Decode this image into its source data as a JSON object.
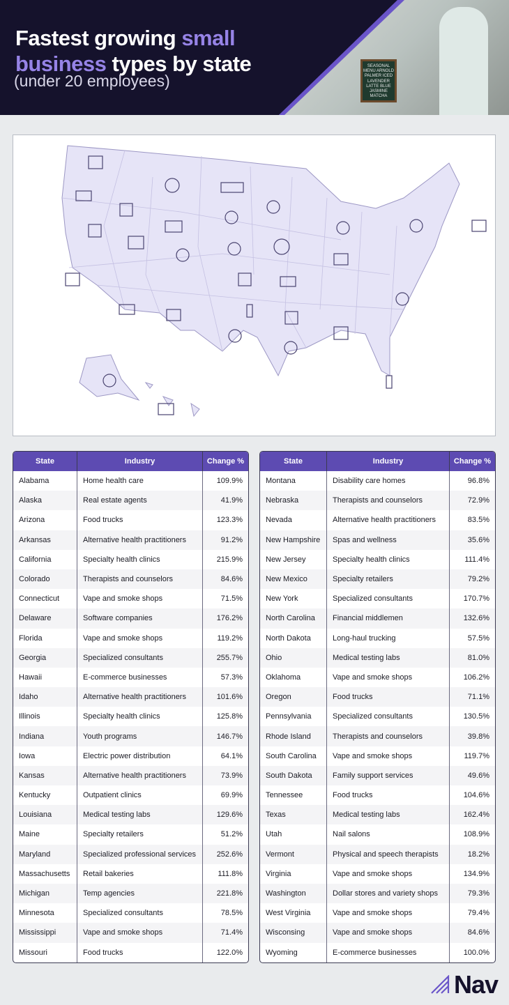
{
  "header": {
    "title_part1": "Fastest growing ",
    "title_highlight1": "small",
    "title_highlight2": "business",
    "title_part2": " types by state",
    "subtitle": "(under 20 employees)",
    "photo_board": "SEASONAL MENU ARNOLD PALMER ICED LAVENDER LATTE BLUE JASMINE MATCHA"
  },
  "colors": {
    "header_bg": "#15122c",
    "accent": "#5d4bb2",
    "highlight": "#9683e6",
    "map_fill": "#e6e4f7"
  },
  "tables": {
    "headers": [
      "State",
      "Industry",
      "Change %"
    ],
    "left": [
      [
        "Alabama",
        "Home health care",
        "109.9%"
      ],
      [
        "Alaska",
        "Real estate agents",
        "41.9%"
      ],
      [
        "Arizona",
        "Food trucks",
        "123.3%"
      ],
      [
        "Arkansas",
        "Alternative health practitioners",
        "91.2%"
      ],
      [
        "California",
        "Specialty health clinics",
        "215.9%"
      ],
      [
        "Colorado",
        "Therapists and counselors",
        "84.6%"
      ],
      [
        "Connecticut",
        "Vape and smoke shops",
        "71.5%"
      ],
      [
        "Delaware",
        "Software companies",
        "176.2%"
      ],
      [
        "Florida",
        "Vape and smoke shops",
        "119.2%"
      ],
      [
        "Georgia",
        "Specialized consultants",
        "255.7%"
      ],
      [
        "Hawaii",
        "E-commerce businesses",
        "57.3%"
      ],
      [
        "Idaho",
        "Alternative health practitioners",
        "101.6%"
      ],
      [
        "Illinois",
        "Specialty health clinics",
        "125.8%"
      ],
      [
        "Indiana",
        "Youth programs",
        "146.7%"
      ],
      [
        "Iowa",
        "Electric power distribution",
        "64.1%"
      ],
      [
        "Kansas",
        "Alternative health practitioners",
        "73.9%"
      ],
      [
        "Kentucky",
        "Outpatient clinics",
        "69.9%"
      ],
      [
        "Louisiana",
        "Medical testing labs",
        "129.6%"
      ],
      [
        "Maine",
        "Specialty retailers",
        "51.2%"
      ],
      [
        "Maryland",
        "Specialized professional services",
        "252.6%"
      ],
      [
        "Massachusetts",
        "Retail bakeries",
        "111.8%"
      ],
      [
        "Michigan",
        "Temp agencies",
        "221.8%"
      ],
      [
        "Minnesota",
        "Specialized consultants",
        "78.5%"
      ],
      [
        "Mississippi",
        "Vape and smoke shops",
        "71.4%"
      ],
      [
        "Missouri",
        "Food trucks",
        "122.0%"
      ]
    ],
    "right": [
      [
        "Montana",
        "Disability care homes",
        "96.8%"
      ],
      [
        "Nebraska",
        "Therapists and counselors",
        "72.9%"
      ],
      [
        "Nevada",
        "Alternative health practitioners",
        "83.5%"
      ],
      [
        "New Hampshire",
        "Spas and wellness",
        "35.6%"
      ],
      [
        "New Jersey",
        "Specialty health clinics",
        "111.4%"
      ],
      [
        "New Mexico",
        "Specialty retailers",
        "79.2%"
      ],
      [
        "New York",
        "Specialized consultants",
        "170.7%"
      ],
      [
        "North Carolina",
        "Financial middlemen",
        "132.6%"
      ],
      [
        "North Dakota",
        "Long-haul trucking",
        "57.5%"
      ],
      [
        "Ohio",
        "Medical testing labs",
        "81.0%"
      ],
      [
        "Oklahoma",
        "Vape and smoke shops",
        "106.2%"
      ],
      [
        "Oregon",
        "Food trucks",
        "71.1%"
      ],
      [
        "Pennsylvania",
        "Specialized consultants",
        "130.5%"
      ],
      [
        "Rhode Island",
        "Therapists and counselors",
        "39.8%"
      ],
      [
        "South Carolina",
        "Vape and smoke shops",
        "119.7%"
      ],
      [
        "South Dakota",
        "Family support services",
        "49.6%"
      ],
      [
        "Tennessee",
        "Food trucks",
        "104.6%"
      ],
      [
        "Texas",
        "Medical testing labs",
        "162.4%"
      ],
      [
        "Utah",
        "Nail salons",
        "108.9%"
      ],
      [
        "Vermont",
        "Physical and speech therapists",
        "18.2%"
      ],
      [
        "Virginia",
        "Vape and smoke shops",
        "134.9%"
      ],
      [
        "Washington",
        "Dollar stores and variety shops",
        "79.3%"
      ],
      [
        "West Virginia",
        "Vape and smoke shops",
        "79.4%"
      ],
      [
        "Wisconsing",
        "Vape and smoke shops",
        "84.6%"
      ],
      [
        "Wyoming",
        "E-commerce businesses",
        "100.0%"
      ]
    ]
  },
  "logo": {
    "text": "Nav"
  }
}
